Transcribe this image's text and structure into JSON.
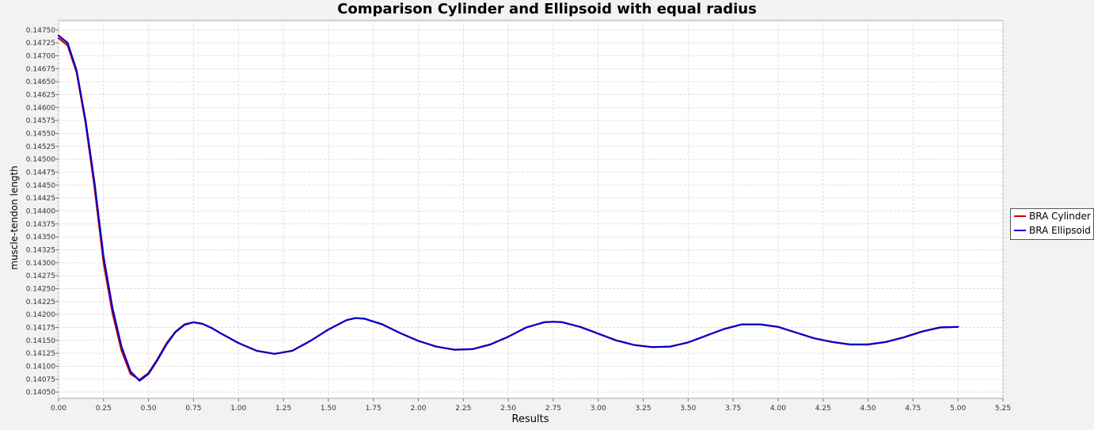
{
  "chart_data": {
    "type": "line",
    "title": "Comparison Cylinder and Ellipsoid with equal radius",
    "xlabel": "Results",
    "ylabel": "muscle-tendon length",
    "xlim": [
      0,
      5.25
    ],
    "ylim": [
      0.14038,
      0.14768
    ],
    "x_ticks": [
      "0.00",
      "0.25",
      "0.50",
      "0.75",
      "1.00",
      "1.25",
      "1.50",
      "1.75",
      "2.00",
      "2.25",
      "2.50",
      "2.75",
      "3.00",
      "3.25",
      "3.50",
      "3.75",
      "4.00",
      "4.25",
      "4.50",
      "4.75",
      "5.00",
      "5.25"
    ],
    "y_ticks": [
      "0.14050",
      "0.14075",
      "0.14100",
      "0.14125",
      "0.14150",
      "0.14175",
      "0.14200",
      "0.14225",
      "0.14250",
      "0.14275",
      "0.14300",
      "0.14325",
      "0.14350",
      "0.14375",
      "0.14400",
      "0.14425",
      "0.14450",
      "0.14475",
      "0.14500",
      "0.14525",
      "0.14550",
      "0.14575",
      "0.14600",
      "0.14625",
      "0.14650",
      "0.14675",
      "0.14700",
      "0.14725",
      "0.14750"
    ],
    "grid": true,
    "legend_position": "right",
    "series": [
      {
        "name": "BRA Cylinder",
        "color": "#cc0000",
        "x": [
          0.0,
          0.05,
          0.1,
          0.15,
          0.2,
          0.25,
          0.3,
          0.35,
          0.4,
          0.45,
          0.5,
          0.55,
          0.6,
          0.65,
          0.7,
          0.75,
          0.8,
          0.85,
          0.9,
          1.0,
          1.1,
          1.2,
          1.3,
          1.4,
          1.5,
          1.6,
          1.65,
          1.7,
          1.8,
          1.9,
          2.0,
          2.1,
          2.2,
          2.3,
          2.4,
          2.5,
          2.6,
          2.7,
          2.75,
          2.8,
          2.9,
          3.0,
          3.1,
          3.2,
          3.3,
          3.4,
          3.5,
          3.6,
          3.7,
          3.8,
          3.9,
          4.0,
          4.1,
          4.2,
          4.3,
          4.4,
          4.5,
          4.6,
          4.7,
          4.8,
          4.9,
          5.0
        ],
        "values": [
          0.14734,
          0.1472,
          0.14668,
          0.1457,
          0.14445,
          0.143,
          0.14202,
          0.1413,
          0.14085,
          0.14074,
          0.14087,
          0.14114,
          0.14144,
          0.14167,
          0.14181,
          0.14185,
          0.14182,
          0.14174,
          0.14164,
          0.14145,
          0.1413,
          0.14124,
          0.1413,
          0.14149,
          0.14171,
          0.14189,
          0.14193,
          0.14192,
          0.14181,
          0.14164,
          0.14149,
          0.14138,
          0.14132,
          0.14133,
          0.14142,
          0.14157,
          0.14175,
          0.14185,
          0.14186,
          0.14185,
          0.14176,
          0.14163,
          0.1415,
          0.14141,
          0.14137,
          0.14138,
          0.14146,
          0.14159,
          0.14172,
          0.14181,
          0.14181,
          0.14176,
          0.14165,
          0.14154,
          0.14147,
          0.14142,
          0.14142,
          0.14147,
          0.14156,
          0.14167,
          0.14175,
          0.14176
        ]
      },
      {
        "name": "BRA Ellipsoid",
        "color": "#0000cc",
        "x": [
          0.0,
          0.05,
          0.1,
          0.15,
          0.2,
          0.25,
          0.3,
          0.35,
          0.4,
          0.45,
          0.5,
          0.55,
          0.6,
          0.65,
          0.7,
          0.75,
          0.8,
          0.85,
          0.9,
          1.0,
          1.1,
          1.2,
          1.3,
          1.4,
          1.5,
          1.6,
          1.65,
          1.7,
          1.8,
          1.9,
          2.0,
          2.1,
          2.2,
          2.3,
          2.4,
          2.5,
          2.6,
          2.7,
          2.75,
          2.8,
          2.9,
          3.0,
          3.1,
          3.2,
          3.3,
          3.4,
          3.5,
          3.6,
          3.7,
          3.8,
          3.9,
          4.0,
          4.1,
          4.2,
          4.3,
          4.4,
          4.5,
          4.6,
          4.7,
          4.8,
          4.9,
          5.0
        ],
        "values": [
          0.14739,
          0.14725,
          0.14672,
          0.14575,
          0.14455,
          0.14312,
          0.14212,
          0.14138,
          0.1409,
          0.14072,
          0.14085,
          0.14112,
          0.14142,
          0.14166,
          0.1418,
          0.14185,
          0.14182,
          0.14174,
          0.14164,
          0.14145,
          0.1413,
          0.14124,
          0.1413,
          0.14149,
          0.14171,
          0.14189,
          0.14193,
          0.14192,
          0.14181,
          0.14164,
          0.14149,
          0.14138,
          0.14132,
          0.14133,
          0.14142,
          0.14157,
          0.14175,
          0.14185,
          0.14186,
          0.14185,
          0.14176,
          0.14163,
          0.1415,
          0.14141,
          0.14137,
          0.14138,
          0.14146,
          0.14159,
          0.14172,
          0.14181,
          0.14181,
          0.14176,
          0.14165,
          0.14154,
          0.14147,
          0.14142,
          0.14142,
          0.14147,
          0.14156,
          0.14167,
          0.14175,
          0.14176
        ]
      }
    ]
  }
}
